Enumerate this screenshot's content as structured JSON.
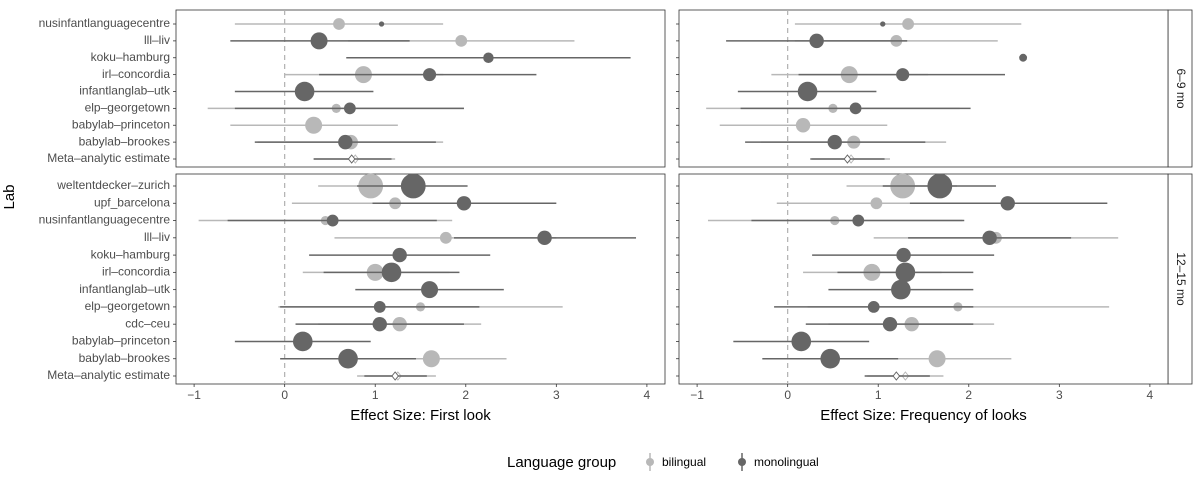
{
  "chart_data": {
    "type": "scatter",
    "ylabel": "Lab",
    "x_ticks": [
      -1,
      0,
      1,
      2,
      3,
      4
    ],
    "xlim": [
      -1.2,
      4.2
    ],
    "reference_line_x": 0,
    "grid": false,
    "legend": {
      "title": "Language group",
      "position": "bottom",
      "entries": [
        {
          "name": "bilingual",
          "color": "#b8b8b8"
        },
        {
          "name": "monolingual",
          "color": "#666666"
        }
      ]
    },
    "facet_cols": [
      {
        "xlabel": "Effect Size: First look"
      },
      {
        "xlabel": "Effect Size: Frequency of looks"
      }
    ],
    "facet_rows": [
      {
        "label": "6–9 mo",
        "labs": [
          "nusinfantlanguagecentre",
          "lll–liv",
          "koku–hamburg",
          "irl–concordia",
          "infantlanglab–utk",
          "elp–georgetown",
          "babylab–princeton",
          "babylab–brookes",
          "Meta–analytic estimate"
        ],
        "panels": [
          {
            "bilingual": [
              {
                "est": 0.6,
                "lo": -0.55,
                "hi": 1.75,
                "n": 3
              },
              {
                "est": 1.95,
                "lo": 0.7,
                "hi": 3.2,
                "n": 3
              },
              null,
              {
                "est": 0.87,
                "lo": 0.0,
                "hi": 1.75,
                "n": 5
              },
              null,
              {
                "est": 0.57,
                "lo": -0.85,
                "hi": 1.98,
                "n": 2
              },
              {
                "est": 0.32,
                "lo": -0.6,
                "hi": 1.25,
                "n": 5
              },
              {
                "est": 0.73,
                "lo": -0.3,
                "hi": 1.75,
                "n": 4
              },
              {
                "est": 0.78,
                "lo": 0.32,
                "hi": 1.22,
                "meta": true
              }
            ],
            "monolingual": [
              {
                "est": 1.07,
                "lo": null,
                "hi": null,
                "n": 0.5
              },
              {
                "est": 0.38,
                "lo": -0.6,
                "hi": 1.38,
                "n": 5
              },
              {
                "est": 2.25,
                "lo": 0.68,
                "hi": 3.82,
                "n": 2.5
              },
              {
                "est": 1.6,
                "lo": 0.38,
                "hi": 2.78,
                "n": 3.5
              },
              {
                "est": 0.22,
                "lo": -0.55,
                "hi": 0.98,
                "n": 6
              },
              {
                "est": 0.72,
                "lo": -0.55,
                "hi": 1.98,
                "n": 3
              },
              null,
              {
                "est": 0.67,
                "lo": -0.33,
                "hi": 1.67,
                "n": 4
              },
              {
                "est": 0.74,
                "lo": 0.32,
                "hi": 1.18,
                "meta": true
              }
            ]
          },
          {
            "bilingual": [
              {
                "est": 1.33,
                "lo": 0.08,
                "hi": 2.58,
                "n": 3
              },
              {
                "est": 1.2,
                "lo": 0.08,
                "hi": 2.32,
                "n": 3
              },
              null,
              {
                "est": 0.68,
                "lo": -0.18,
                "hi": 1.55,
                "n": 5
              },
              null,
              {
                "est": 0.5,
                "lo": -0.9,
                "hi": 1.9,
                "n": 2
              },
              {
                "est": 0.17,
                "lo": -0.75,
                "hi": 1.1,
                "n": 4
              },
              {
                "est": 0.73,
                "lo": -0.3,
                "hi": 1.75,
                "n": 3.5
              },
              {
                "est": 0.7,
                "lo": 0.27,
                "hi": 1.13,
                "meta": true
              }
            ],
            "monolingual": [
              {
                "est": 1.05,
                "lo": null,
                "hi": null,
                "n": 0.5
              },
              {
                "est": 0.32,
                "lo": -0.68,
                "hi": 1.32,
                "n": 4
              },
              {
                "est": 2.6,
                "lo": null,
                "hi": null,
                "n": 1.5
              },
              {
                "est": 1.27,
                "lo": 0.12,
                "hi": 2.4,
                "n": 3.5
              },
              {
                "est": 0.22,
                "lo": -0.55,
                "hi": 0.98,
                "n": 6
              },
              {
                "est": 0.75,
                "lo": -0.52,
                "hi": 2.02,
                "n": 3
              },
              null,
              {
                "est": 0.52,
                "lo": -0.47,
                "hi": 1.52,
                "n": 4
              },
              {
                "est": 0.66,
                "lo": 0.25,
                "hi": 1.07,
                "meta": true
              }
            ]
          }
        ]
      },
      {
        "label": "12–15 mo",
        "labs": [
          "weltentdecker–zurich",
          "upf_barcelona",
          "nusinfantlanguagecentre",
          "lll–liv",
          "koku–hamburg",
          "irl–concordia",
          "infantlanglab–utk",
          "elp–georgetown",
          "cdc–ceu",
          "babylab–princeton",
          "babylab–brookes",
          "Meta–analytic estimate"
        ],
        "panels": [
          {
            "bilingual": [
              {
                "est": 0.95,
                "lo": 0.37,
                "hi": 1.55,
                "n": 8
              },
              {
                "est": 1.22,
                "lo": 0.08,
                "hi": 2.35,
                "n": 3
              },
              {
                "est": 0.45,
                "lo": -0.95,
                "hi": 1.85,
                "n": 2
              },
              {
                "est": 1.78,
                "lo": 0.55,
                "hi": 3.0,
                "n": 3
              },
              null,
              {
                "est": 1.0,
                "lo": 0.2,
                "hi": 1.82,
                "n": 5
              },
              null,
              {
                "est": 1.5,
                "lo": -0.07,
                "hi": 3.07,
                "n": 2
              },
              {
                "est": 1.27,
                "lo": 0.37,
                "hi": 2.17,
                "n": 4
              },
              null,
              {
                "est": 1.62,
                "lo": 0.8,
                "hi": 2.45,
                "n": 5
              },
              {
                "est": 1.25,
                "lo": 0.8,
                "hi": 1.67,
                "meta": true
              }
            ],
            "monolingual": [
              {
                "est": 1.42,
                "lo": 0.8,
                "hi": 2.02,
                "n": 8
              },
              {
                "est": 1.98,
                "lo": 0.97,
                "hi": 3.0,
                "n": 4
              },
              {
                "est": 0.53,
                "lo": -0.63,
                "hi": 1.68,
                "n": 3
              },
              {
                "est": 2.87,
                "lo": 1.87,
                "hi": 3.88,
                "n": 4
              },
              {
                "est": 1.27,
                "lo": 0.27,
                "hi": 2.27,
                "n": 4
              },
              {
                "est": 1.18,
                "lo": 0.43,
                "hi": 1.93,
                "n": 6
              },
              {
                "est": 1.6,
                "lo": 0.78,
                "hi": 2.42,
                "n": 5
              },
              {
                "est": 1.05,
                "lo": -0.05,
                "hi": 2.15,
                "n": 3
              },
              {
                "est": 1.05,
                "lo": 0.12,
                "hi": 1.98,
                "n": 4
              },
              {
                "est": 0.2,
                "lo": -0.55,
                "hi": 0.95,
                "n": 6
              },
              {
                "est": 0.7,
                "lo": -0.05,
                "hi": 1.45,
                "n": 6
              },
              {
                "est": 1.22,
                "lo": 0.88,
                "hi": 1.57,
                "meta": true
              }
            ]
          },
          {
            "bilingual": [
              {
                "est": 1.27,
                "lo": 0.65,
                "hi": 1.87,
                "n": 8
              },
              {
                "est": 0.98,
                "lo": -0.12,
                "hi": 2.08,
                "n": 3
              },
              {
                "est": 0.52,
                "lo": -0.88,
                "hi": 1.93,
                "n": 2
              },
              {
                "est": 2.3,
                "lo": 0.95,
                "hi": 3.65,
                "n": 3
              },
              null,
              {
                "est": 0.93,
                "lo": 0.17,
                "hi": 1.7,
                "n": 5
              },
              null,
              {
                "est": 1.88,
                "lo": 0.22,
                "hi": 3.55,
                "n": 2
              },
              {
                "est": 1.37,
                "lo": 0.45,
                "hi": 2.28,
                "n": 4
              },
              null,
              {
                "est": 1.65,
                "lo": 0.82,
                "hi": 2.47,
                "n": 5
              },
              {
                "est": 1.3,
                "lo": 0.88,
                "hi": 1.72,
                "meta": true
              }
            ],
            "monolingual": [
              {
                "est": 1.68,
                "lo": 1.05,
                "hi": 2.3,
                "n": 8
              },
              {
                "est": 2.43,
                "lo": 1.35,
                "hi": 3.53,
                "n": 4
              },
              {
                "est": 0.78,
                "lo": -0.4,
                "hi": 1.95,
                "n": 3
              },
              {
                "est": 2.23,
                "lo": 1.33,
                "hi": 3.13,
                "n": 4
              },
              {
                "est": 1.28,
                "lo": 0.27,
                "hi": 2.28,
                "n": 4
              },
              {
                "est": 1.3,
                "lo": 0.55,
                "hi": 2.05,
                "n": 6
              },
              {
                "est": 1.25,
                "lo": 0.45,
                "hi": 2.05,
                "n": 6
              },
              {
                "est": 0.95,
                "lo": -0.15,
                "hi": 2.05,
                "n": 3
              },
              {
                "est": 1.13,
                "lo": 0.2,
                "hi": 2.05,
                "n": 4
              },
              {
                "est": 0.15,
                "lo": -0.6,
                "hi": 0.9,
                "n": 6
              },
              {
                "est": 0.47,
                "lo": -0.28,
                "hi": 1.22,
                "n": 6
              },
              {
                "est": 1.2,
                "lo": 0.85,
                "hi": 1.57,
                "meta": true
              }
            ]
          }
        ]
      }
    ]
  }
}
